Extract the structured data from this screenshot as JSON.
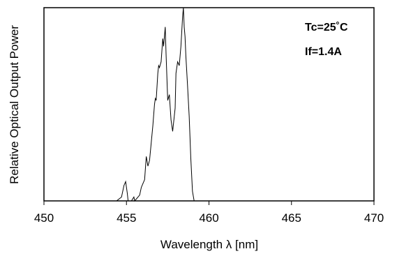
{
  "chart_data": {
    "type": "line",
    "title": "",
    "xlabel": "Wavelength λ [nm]",
    "ylabel": "Relative Optical Output Power",
    "xlim": [
      450,
      470
    ],
    "ylim": [
      0,
      1
    ],
    "x_ticks": [
      450,
      455,
      460,
      465,
      470
    ],
    "x_tick_labels": [
      "450",
      "455",
      "460",
      "465",
      "470"
    ],
    "y_ticks_shown": false,
    "grid": false,
    "annotations": [
      "Tc=25˚C",
      "If=1.4A"
    ],
    "series": [
      {
        "name": "",
        "x": [
          450.0,
          454.4,
          454.7,
          454.85,
          454.95,
          455.05,
          455.1,
          455.3,
          455.45,
          455.5,
          455.7,
          455.8,
          455.9,
          456.0,
          456.1,
          456.2,
          456.3,
          456.4,
          456.5,
          456.6,
          456.7,
          456.75,
          456.8,
          456.9,
          456.95,
          457.0,
          457.1,
          457.2,
          457.25,
          457.35,
          457.4,
          457.5,
          457.6,
          457.7,
          457.8,
          457.85,
          457.9,
          457.95,
          458.0,
          458.1,
          458.2,
          458.3,
          458.4,
          458.45,
          458.5,
          458.55,
          458.6,
          458.7,
          458.8,
          458.9,
          459.0,
          459.1,
          459.3,
          470.0
        ],
        "y": [
          0.0,
          0.0,
          0.02,
          0.08,
          0.1,
          0.04,
          0.0,
          0.0,
          0.02,
          0.0,
          0.02,
          0.03,
          0.07,
          0.09,
          0.11,
          0.23,
          0.18,
          0.21,
          0.3,
          0.39,
          0.5,
          0.53,
          0.52,
          0.66,
          0.7,
          0.69,
          0.72,
          0.84,
          0.8,
          0.9,
          0.76,
          0.52,
          0.55,
          0.42,
          0.36,
          0.4,
          0.44,
          0.48,
          0.66,
          0.72,
          0.7,
          0.8,
          0.95,
          1.0,
          0.9,
          0.85,
          0.75,
          0.6,
          0.44,
          0.22,
          0.05,
          0.0,
          0.0,
          0.0
        ]
      }
    ]
  }
}
